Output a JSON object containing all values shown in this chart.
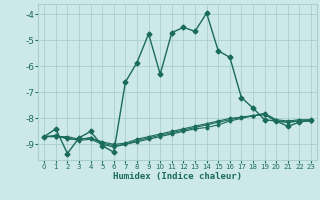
{
  "xlabel": "Humidex (Indice chaleur)",
  "background_color": "#cde8e8",
  "grid_color": "#aacfcf",
  "line_color": "#1a6b5a",
  "spine_color": "#aacfcf",
  "xlim": [
    -0.5,
    23.5
  ],
  "ylim": [
    -9.6,
    -3.6
  ],
  "xticks": [
    0,
    1,
    2,
    3,
    4,
    5,
    6,
    7,
    8,
    9,
    10,
    11,
    12,
    13,
    14,
    15,
    16,
    17,
    18,
    19,
    20,
    21,
    22,
    23
  ],
  "yticks": [
    -9,
    -8,
    -7,
    -6,
    -5,
    -4
  ],
  "series_main": {
    "x": [
      0,
      1,
      2,
      3,
      4,
      5,
      6,
      7,
      8,
      9,
      10,
      11,
      12,
      13,
      14,
      15,
      16,
      17,
      18,
      19,
      20,
      21,
      22,
      23
    ],
    "y": [
      -8.7,
      -8.4,
      -9.35,
      -8.75,
      -8.5,
      -9.05,
      -9.3,
      -6.6,
      -5.85,
      -4.75,
      -6.3,
      -4.7,
      -4.5,
      -4.65,
      -3.95,
      -5.4,
      -5.65,
      -7.2,
      -7.6,
      -8.05,
      -8.1,
      -8.3,
      -8.15,
      -8.05
    ]
  },
  "series_flat": [
    {
      "x": [
        0,
        1,
        2,
        3,
        4,
        5,
        6,
        7,
        8,
        9,
        10,
        11,
        12,
        13,
        14,
        15,
        16,
        17,
        18,
        19,
        20,
        21,
        22,
        23
      ],
      "y": [
        -8.7,
        -8.65,
        -8.8,
        -8.8,
        -8.75,
        -8.95,
        -9.05,
        -9.0,
        -8.9,
        -8.8,
        -8.7,
        -8.6,
        -8.5,
        -8.4,
        -8.35,
        -8.25,
        -8.1,
        -8.0,
        -7.9,
        -7.85,
        -8.1,
        -8.15,
        -8.1,
        -8.1
      ]
    },
    {
      "x": [
        0,
        1,
        2,
        3,
        4,
        5,
        6,
        7,
        8,
        9,
        10,
        11,
        12,
        13,
        14,
        15,
        16,
        17,
        18,
        19,
        20,
        21,
        22,
        23
      ],
      "y": [
        -8.7,
        -8.7,
        -8.75,
        -8.85,
        -8.8,
        -9.0,
        -9.1,
        -9.0,
        -8.85,
        -8.75,
        -8.65,
        -8.55,
        -8.45,
        -8.35,
        -8.25,
        -8.15,
        -8.05,
        -7.95,
        -7.9,
        -7.85,
        -8.1,
        -8.15,
        -8.1,
        -8.1
      ]
    },
    {
      "x": [
        0,
        1,
        2,
        3,
        4,
        5,
        6,
        7,
        8,
        9,
        10,
        11,
        12,
        13,
        14,
        15,
        16,
        17,
        18,
        19,
        20,
        21,
        22,
        23
      ],
      "y": [
        -8.7,
        -8.7,
        -8.7,
        -8.8,
        -8.75,
        -8.9,
        -9.0,
        -8.95,
        -8.8,
        -8.7,
        -8.6,
        -8.5,
        -8.4,
        -8.3,
        -8.2,
        -8.1,
        -8.0,
        -7.95,
        -7.9,
        -7.8,
        -8.05,
        -8.1,
        -8.05,
        -8.05
      ]
    }
  ]
}
